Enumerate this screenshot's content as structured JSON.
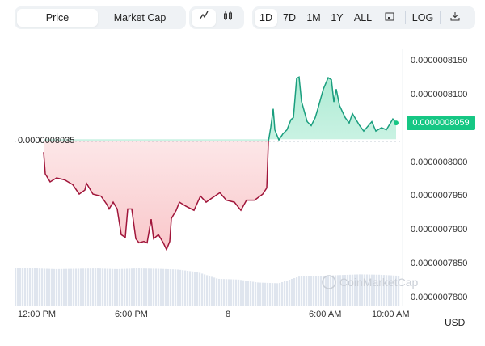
{
  "toolbar": {
    "metric_tabs": [
      {
        "label": "Price",
        "active": true
      },
      {
        "label": "Market Cap",
        "active": false
      }
    ],
    "chart_types": [
      {
        "icon": "line-chart-icon",
        "label": "∿",
        "active": true
      },
      {
        "icon": "candlestick-icon",
        "label": "ůů",
        "active": false
      }
    ],
    "ranges": [
      {
        "label": "1D",
        "active": true
      },
      {
        "label": "7D"
      },
      {
        "label": "1M"
      },
      {
        "label": "1Y"
      },
      {
        "label": "ALL"
      }
    ],
    "calendar_icon": "calendar-icon",
    "log_label": "LOG",
    "download_icon": "download-icon"
  },
  "watermark": "CoinMarketCap",
  "currency": "USD",
  "colors": {
    "up": "#16c784",
    "up_line": "#1a9e7e",
    "down_line": "#a0153a",
    "badge": "#16c784"
  },
  "chart_data": {
    "type": "line",
    "reference_value": 8.035e-07,
    "reference_label": "0.0000008035",
    "current_price_label": "0.0000008059",
    "yticks": [
      "0.0000008150",
      "0.0000008100",
      "0.0000008000",
      "0.0000007950",
      "0.0000007900",
      "0.0000007850",
      "0.0000007800"
    ],
    "ytick_values": [
      8.15e-07,
      8.1e-07,
      8e-07,
      7.95e-07,
      7.9e-07,
      7.85e-07,
      7.8e-07
    ],
    "xticks": [
      "12:00 PM",
      "6:00 PM",
      "8",
      "6:00 AM",
      "10:00 AM"
    ],
    "xtick_times": [
      "07 12:00",
      "07 18:00",
      "08 00:00",
      "08 06:00",
      "08 10:00"
    ],
    "ylim": [
      7.79e-07,
      8.155e-07
    ],
    "grid": false,
    "points": [
      [
        "07 12:36",
        8.016e-07
      ],
      [
        "07 12:42",
        7.984e-07
      ],
      [
        "07 13:00",
        7.972e-07
      ],
      [
        "07 13:24",
        7.978e-07
      ],
      [
        "07 13:54",
        7.975e-07
      ],
      [
        "07 14:24",
        7.968e-07
      ],
      [
        "07 14:48",
        7.954e-07
      ],
      [
        "07 15:09",
        7.96e-07
      ],
      [
        "07 15:15",
        7.97e-07
      ],
      [
        "07 15:39",
        7.954e-07
      ],
      [
        "07 16:09",
        7.951e-07
      ],
      [
        "07 16:30",
        7.939e-07
      ],
      [
        "07 16:39",
        7.932e-07
      ],
      [
        "07 16:54",
        7.942e-07
      ],
      [
        "07 17:09",
        7.932e-07
      ],
      [
        "07 17:24",
        7.894e-07
      ],
      [
        "07 17:39",
        7.89e-07
      ],
      [
        "07 17:48",
        7.932e-07
      ],
      [
        "07 18:03",
        7.932e-07
      ],
      [
        "07 18:18",
        7.888e-07
      ],
      [
        "07 18:30",
        7.882e-07
      ],
      [
        "07 18:48",
        7.884e-07
      ],
      [
        "07 19:00",
        7.882e-07
      ],
      [
        "07 19:15",
        7.917e-07
      ],
      [
        "07 19:24",
        7.888e-07
      ],
      [
        "07 19:42",
        7.894e-07
      ],
      [
        "07 20:00",
        7.882e-07
      ],
      [
        "07 20:12",
        7.872e-07
      ],
      [
        "07 20:24",
        7.884e-07
      ],
      [
        "07 20:30",
        7.918e-07
      ],
      [
        "07 20:48",
        7.93e-07
      ],
      [
        "07 21:00",
        7.942e-07
      ],
      [
        "07 21:24",
        7.936e-07
      ],
      [
        "07 21:54",
        7.93e-07
      ],
      [
        "07 22:18",
        7.951e-07
      ],
      [
        "07 22:39",
        7.942e-07
      ],
      [
        "07 23:00",
        7.948e-07
      ],
      [
        "07 23:30",
        7.956e-07
      ],
      [
        "07 23:54",
        7.945e-07
      ],
      [
        "08 00:24",
        7.942e-07
      ],
      [
        "08 00:48",
        7.93e-07
      ],
      [
        "08 01:09",
        7.945e-07
      ],
      [
        "08 01:39",
        7.945e-07
      ],
      [
        "08 02:09",
        7.954e-07
      ],
      [
        "08 02:24",
        7.963e-07
      ],
      [
        "08 02:30",
        8.031e-07
      ],
      [
        "08 02:39",
        8.053e-07
      ],
      [
        "08 02:48",
        8.08e-07
      ],
      [
        "08 02:54",
        8.049e-07
      ],
      [
        "08 03:09",
        8.034e-07
      ],
      [
        "08 03:24",
        8.043e-07
      ],
      [
        "08 03:39",
        8.049e-07
      ],
      [
        "08 03:54",
        8.064e-07
      ],
      [
        "08 04:03",
        8.067e-07
      ],
      [
        "08 04:15",
        8.125e-07
      ],
      [
        "08 04:24",
        8.127e-07
      ],
      [
        "08 04:33",
        8.091e-07
      ],
      [
        "08 04:54",
        8.061e-07
      ],
      [
        "08 05:09",
        8.055e-07
      ],
      [
        "08 05:24",
        8.067e-07
      ],
      [
        "08 05:33",
        8.079e-07
      ],
      [
        "08 05:54",
        8.109e-07
      ],
      [
        "08 06:12",
        8.126e-07
      ],
      [
        "08 06:24",
        8.123e-07
      ],
      [
        "08 06:33",
        8.09e-07
      ],
      [
        "08 06:42",
        8.109e-07
      ],
      [
        "08 06:54",
        8.085e-07
      ],
      [
        "08 07:15",
        8.067e-07
      ],
      [
        "08 07:30",
        8.059e-07
      ],
      [
        "08 07:42",
        8.073e-07
      ],
      [
        "08 08:09",
        8.055e-07
      ],
      [
        "08 08:24",
        8.047e-07
      ],
      [
        "08 08:54",
        8.061e-07
      ],
      [
        "08 09:09",
        8.047e-07
      ],
      [
        "08 09:30",
        8.052e-07
      ],
      [
        "08 09:48",
        8.049e-07
      ],
      [
        "08 10:12",
        8.065e-07
      ],
      [
        "08 10:24",
        8.059e-07
      ]
    ],
    "volume_relative": [
      1,
      1,
      0.98,
      0.99,
      1,
      0.98,
      1,
      0.99,
      0.97,
      0.9,
      0.72,
      0.7,
      0.62,
      0.6,
      0.78,
      0.8,
      0.82,
      0.84,
      0.83,
      0.8
    ]
  }
}
